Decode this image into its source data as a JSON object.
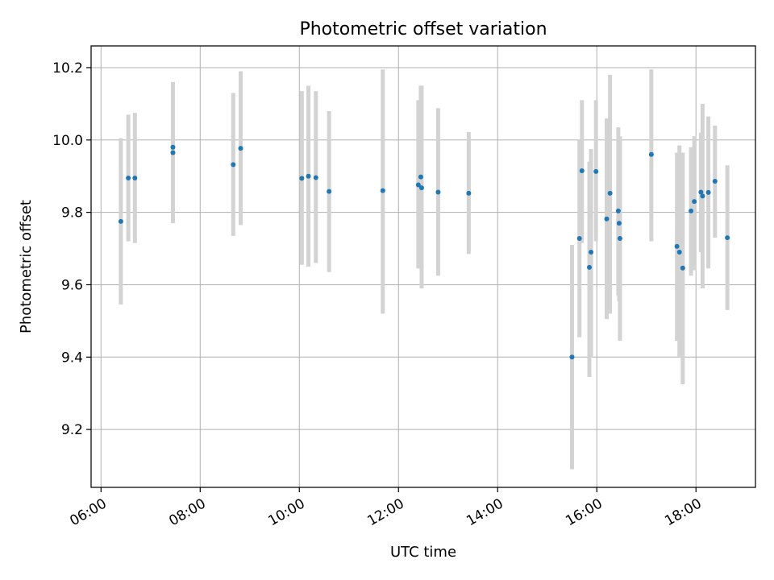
{
  "chart_data": {
    "type": "scatter",
    "title": "Photometric offset variation",
    "xlabel": "UTC time",
    "ylabel": "Photometric offset",
    "x_tick_labels": [
      "06:00",
      "08:00",
      "10:00",
      "12:00",
      "14:00",
      "16:00",
      "18:00"
    ],
    "y_tick_labels": [
      "9.2",
      "9.4",
      "9.6",
      "9.8",
      "10.0",
      "10.2"
    ],
    "x_tick_hours": [
      6,
      8,
      10,
      12,
      14,
      16,
      18
    ],
    "y_ticks": [
      9.2,
      9.4,
      9.6,
      9.8,
      10.0,
      10.2
    ],
    "xlim_hours": [
      5.8,
      19.2
    ],
    "ylim": [
      9.04,
      10.26
    ],
    "grid": true,
    "marker_color": "#1f77b4",
    "errorbar_color": "#d3d3d3",
    "points": [
      {
        "t": "06:24",
        "y": 9.775,
        "lo": 9.545,
        "hi": 10.005
      },
      {
        "t": "06:33",
        "y": 9.895,
        "lo": 9.72,
        "hi": 10.07
      },
      {
        "t": "06:41",
        "y": 9.895,
        "lo": 9.715,
        "hi": 10.075
      },
      {
        "t": "07:27",
        "y": 9.98,
        "lo": 9.8,
        "hi": 10.16
      },
      {
        "t": "07:27",
        "y": 9.965,
        "lo": 9.77,
        "hi": 10.16
      },
      {
        "t": "08:40",
        "y": 9.932,
        "lo": 9.735,
        "hi": 10.13
      },
      {
        "t": "08:49",
        "y": 9.977,
        "lo": 9.765,
        "hi": 10.19
      },
      {
        "t": "10:03",
        "y": 9.894,
        "lo": 9.655,
        "hi": 10.135
      },
      {
        "t": "10:11",
        "y": 9.9,
        "lo": 9.65,
        "hi": 10.15
      },
      {
        "t": "10:20",
        "y": 9.896,
        "lo": 9.66,
        "hi": 10.135
      },
      {
        "t": "10:36",
        "y": 9.858,
        "lo": 9.635,
        "hi": 10.08
      },
      {
        "t": "11:41",
        "y": 9.86,
        "lo": 9.52,
        "hi": 10.195
      },
      {
        "t": "12:24",
        "y": 9.876,
        "lo": 9.645,
        "hi": 10.11
      },
      {
        "t": "12:27",
        "y": 9.898,
        "lo": 9.645,
        "hi": 10.15
      },
      {
        "t": "12:28",
        "y": 9.868,
        "lo": 9.59,
        "hi": 10.15
      },
      {
        "t": "12:48",
        "y": 9.856,
        "lo": 9.625,
        "hi": 10.088
      },
      {
        "t": "13:25",
        "y": 9.853,
        "lo": 9.685,
        "hi": 10.022
      },
      {
        "t": "15:30",
        "y": 9.4,
        "lo": 9.09,
        "hi": 9.71
      },
      {
        "t": "15:39",
        "y": 9.728,
        "lo": 9.455,
        "hi": 10.0
      },
      {
        "t": "15:42",
        "y": 9.915,
        "lo": 9.715,
        "hi": 10.11
      },
      {
        "t": "15:51",
        "y": 9.648,
        "lo": 9.345,
        "hi": 9.94
      },
      {
        "t": "15:53",
        "y": 9.69,
        "lo": 9.4,
        "hi": 9.975
      },
      {
        "t": "15:59",
        "y": 9.913,
        "lo": 9.72,
        "hi": 10.11
      },
      {
        "t": "16:12",
        "y": 9.782,
        "lo": 9.505,
        "hi": 10.06
      },
      {
        "t": "16:16",
        "y": 9.853,
        "lo": 9.52,
        "hi": 10.18
      },
      {
        "t": "16:26",
        "y": 9.804,
        "lo": 9.57,
        "hi": 10.035
      },
      {
        "t": "16:27",
        "y": 9.77,
        "lo": 9.555,
        "hi": 9.99
      },
      {
        "t": "16:28",
        "y": 9.728,
        "lo": 9.445,
        "hi": 10.01
      },
      {
        "t": "17:06",
        "y": 9.96,
        "lo": 9.72,
        "hi": 10.195
      },
      {
        "t": "17:37",
        "y": 9.706,
        "lo": 9.445,
        "hi": 9.965
      },
      {
        "t": "17:40",
        "y": 9.69,
        "lo": 9.4,
        "hi": 9.985
      },
      {
        "t": "17:44",
        "y": 9.646,
        "lo": 9.325,
        "hi": 9.965
      },
      {
        "t": "17:54",
        "y": 9.804,
        "lo": 9.625,
        "hi": 9.98
      },
      {
        "t": "17:58",
        "y": 9.83,
        "lo": 9.64,
        "hi": 10.01
      },
      {
        "t": "18:06",
        "y": 9.856,
        "lo": 9.69,
        "hi": 10.02
      },
      {
        "t": "18:08",
        "y": 9.845,
        "lo": 9.59,
        "hi": 10.1
      },
      {
        "t": "18:15",
        "y": 9.855,
        "lo": 9.645,
        "hi": 10.065
      },
      {
        "t": "18:23",
        "y": 9.886,
        "lo": 9.73,
        "hi": 10.04
      },
      {
        "t": "18:38",
        "y": 9.73,
        "lo": 9.53,
        "hi": 9.93
      }
    ]
  }
}
